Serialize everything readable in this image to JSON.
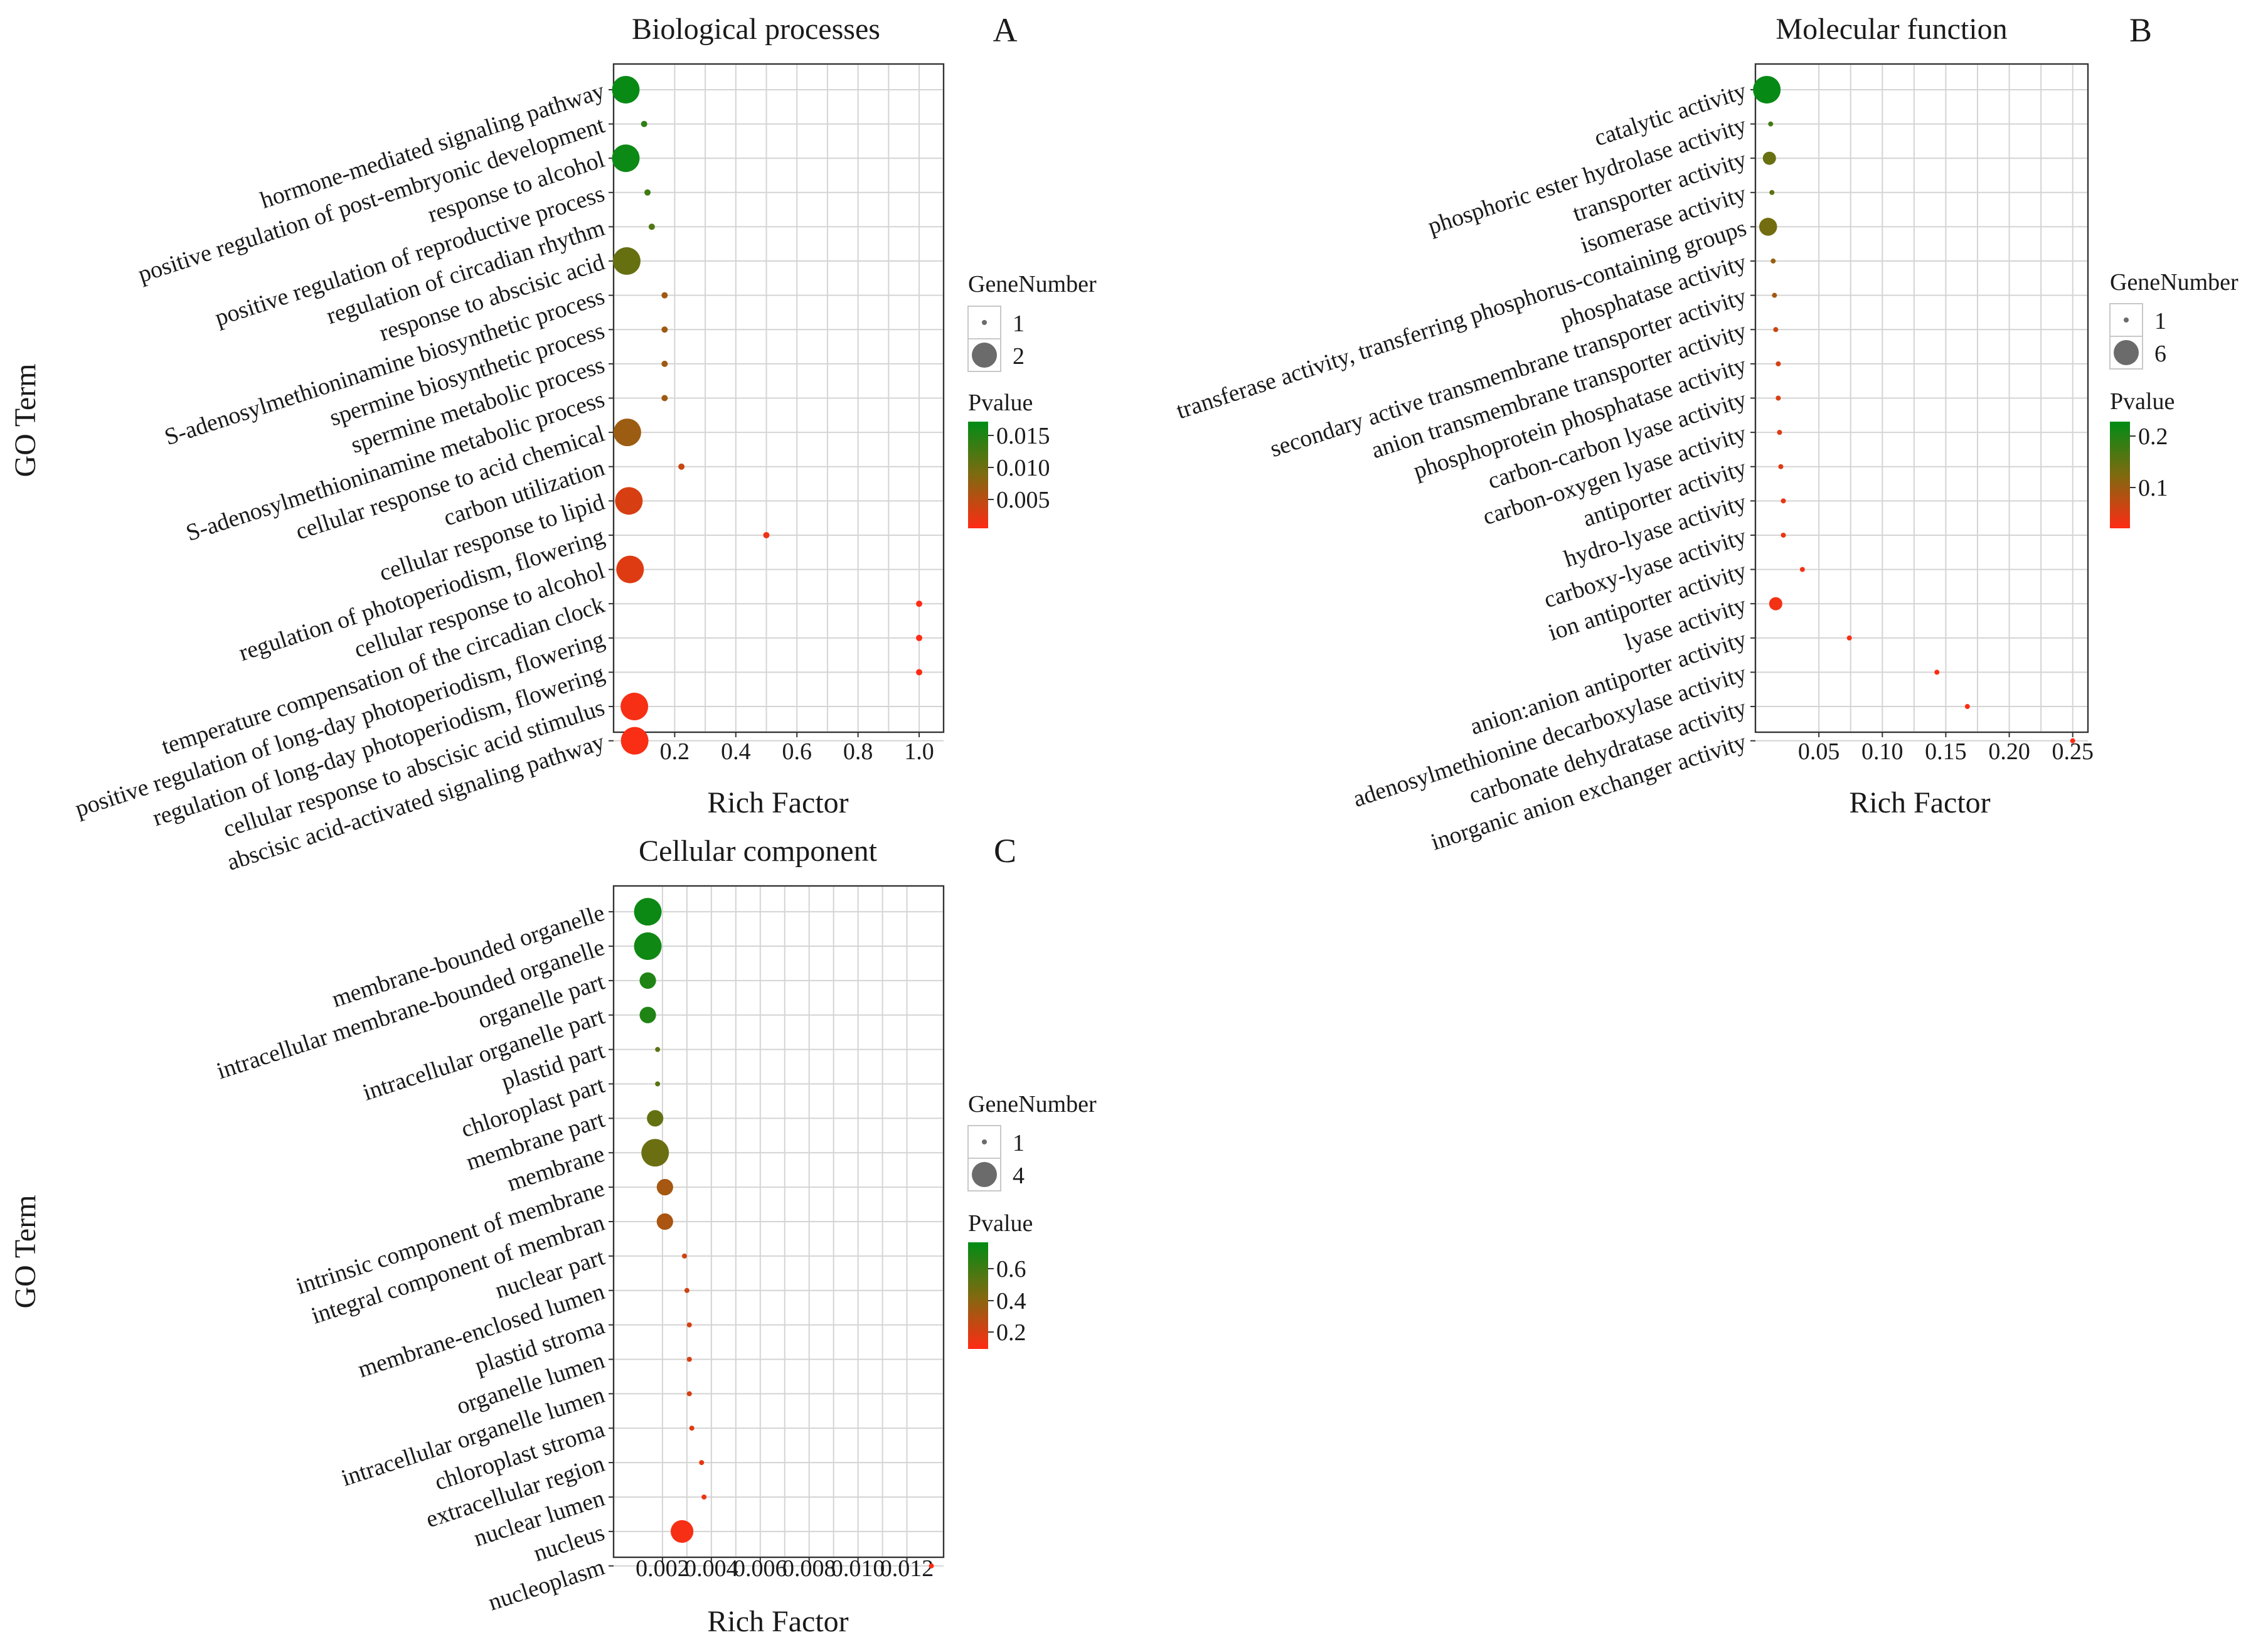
{
  "colors": {
    "low_p": "#ff2b14",
    "high_p": "#008c15",
    "mid_p": "#7f6a10",
    "legend_dot": "#6b6b6b"
  },
  "panels": [
    {
      "id": "bp",
      "letter": "A",
      "title": "Biological processes",
      "xlabel": "Rich Factor",
      "ylabel": "GO Term",
      "legend": {
        "size_title": "GeneNumber",
        "size_values": [
          "1",
          "2"
        ],
        "color_title": "Pvalue",
        "color_ticks": [
          "0.015",
          "0.010",
          "0.005"
        ]
      }
    },
    {
      "id": "mf",
      "letter": "B",
      "title": "Molecular function",
      "xlabel": "Rich Factor",
      "ylabel": "",
      "legend": {
        "size_title": "GeneNumber",
        "size_values": [
          "1",
          "6"
        ],
        "color_title": "Pvalue",
        "color_ticks": [
          "0.2",
          "0.1"
        ]
      }
    },
    {
      "id": "cc",
      "letter": "C",
      "title": "Cellular component",
      "xlabel": "Rich Factor",
      "ylabel": "GO Term",
      "legend": {
        "size_title": "GeneNumber",
        "size_values": [
          "1",
          "4"
        ],
        "color_title": "Pvalue",
        "color_ticks": [
          "0.6",
          "0.4",
          "0.2"
        ]
      }
    }
  ],
  "chart_data": [
    {
      "type": "scatter",
      "panel": "bp",
      "title": "Biological processes",
      "xlabel": "Rich Factor",
      "ylabel": "GO Term",
      "xlim": [
        0.0,
        1.08
      ],
      "xticks": [
        "0.2",
        "0.4",
        "0.6",
        "0.8",
        "1.0"
      ],
      "xtick_values": [
        0.2,
        0.4,
        0.6,
        0.8,
        1.0
      ],
      "size_range": [
        1,
        2
      ],
      "pvalue_range": [
        0.001,
        0.017
      ],
      "points": [
        {
          "term": "hormone-mediated signaling pathway",
          "rich_factor": 0.04,
          "gene_number": 2,
          "pvalue": 0.0165
        },
        {
          "term": "positive regulation of post-embryonic development",
          "rich_factor": 0.1,
          "gene_number": 1,
          "pvalue": 0.014
        },
        {
          "term": "response to alcohol",
          "rich_factor": 0.04,
          "gene_number": 2,
          "pvalue": 0.0162
        },
        {
          "term": "positive regulation of reproductive process",
          "rich_factor": 0.111,
          "gene_number": 1,
          "pvalue": 0.013
        },
        {
          "term": "regulation of circadian rhythm",
          "rich_factor": 0.125,
          "gene_number": 1,
          "pvalue": 0.012
        },
        {
          "term": "response to abscisic acid",
          "rich_factor": 0.043,
          "gene_number": 2,
          "pvalue": 0.0105
        },
        {
          "term": "S-adenosylmethioninamine biosynthetic process",
          "rich_factor": 0.167,
          "gene_number": 1,
          "pvalue": 0.007
        },
        {
          "term": "spermine biosynthetic process",
          "rich_factor": 0.167,
          "gene_number": 1,
          "pvalue": 0.007
        },
        {
          "term": "spermine metabolic process",
          "rich_factor": 0.167,
          "gene_number": 1,
          "pvalue": 0.007
        },
        {
          "term": "S-adenosylmethioninamine metabolic process",
          "rich_factor": 0.167,
          "gene_number": 1,
          "pvalue": 0.007
        },
        {
          "term": "cellular response to acid chemical",
          "rich_factor": 0.045,
          "gene_number": 2,
          "pvalue": 0.0072
        },
        {
          "term": "carbon utilization",
          "rich_factor": 0.222,
          "gene_number": 1,
          "pvalue": 0.0045
        },
        {
          "term": "cellular response to lipid",
          "rich_factor": 0.05,
          "gene_number": 2,
          "pvalue": 0.0035
        },
        {
          "term": "regulation of photoperiodism, flowering",
          "rich_factor": 0.5,
          "gene_number": 1,
          "pvalue": 0.002
        },
        {
          "term": "cellular response to alcohol",
          "rich_factor": 0.054,
          "gene_number": 2,
          "pvalue": 0.003
        },
        {
          "term": "temperature compensation of the circadian clock",
          "rich_factor": 1.0,
          "gene_number": 1,
          "pvalue": 0.001
        },
        {
          "term": "positive regulation of long-day photoperiodism, flowering",
          "rich_factor": 1.0,
          "gene_number": 1,
          "pvalue": 0.001
        },
        {
          "term": "regulation of long-day photoperiodism, flowering",
          "rich_factor": 1.0,
          "gene_number": 1,
          "pvalue": 0.001
        },
        {
          "term": "cellular response to abscisic acid stimulus",
          "rich_factor": 0.068,
          "gene_number": 2,
          "pvalue": 0.0015
        },
        {
          "term": "abscisic acid-activated signaling pathway",
          "rich_factor": 0.069,
          "gene_number": 2,
          "pvalue": 0.0014
        }
      ]
    },
    {
      "type": "scatter",
      "panel": "mf",
      "title": "Molecular function",
      "xlabel": "Rich Factor",
      "ylabel": "",
      "xlim": [
        0.0,
        0.262
      ],
      "xticks": [
        "0.05",
        "0.10",
        "0.15",
        "0.20",
        "0.25"
      ],
      "xtick_values": [
        0.05,
        0.1,
        0.15,
        0.2,
        0.25
      ],
      "size_range": [
        1,
        6
      ],
      "pvalue_range": [
        0.01,
        0.23
      ],
      "points": [
        {
          "term": "catalytic activity",
          "rich_factor": 0.009,
          "gene_number": 6,
          "pvalue": 0.225
        },
        {
          "term": "phosphoric ester hydrolase activity",
          "rich_factor": 0.012,
          "gene_number": 1,
          "pvalue": 0.17
        },
        {
          "term": "transporter activity",
          "rich_factor": 0.011,
          "gene_number": 2,
          "pvalue": 0.14
        },
        {
          "term": "isomerase activity",
          "rich_factor": 0.013,
          "gene_number": 1,
          "pvalue": 0.15
        },
        {
          "term": "transferase activity, transferring phosphorus-containing groups",
          "rich_factor": 0.01,
          "gene_number": 3,
          "pvalue": 0.13
        },
        {
          "term": "phosphatase activity",
          "rich_factor": 0.014,
          "gene_number": 1,
          "pvalue": 0.1
        },
        {
          "term": "secondary active transmembrane transporter activity",
          "rich_factor": 0.015,
          "gene_number": 1,
          "pvalue": 0.09
        },
        {
          "term": "anion transmembrane transporter activity",
          "rich_factor": 0.016,
          "gene_number": 1,
          "pvalue": 0.06
        },
        {
          "term": "phosphoprotein phosphatase activity",
          "rich_factor": 0.018,
          "gene_number": 1,
          "pvalue": 0.045
        },
        {
          "term": "carbon-carbon lyase activity",
          "rich_factor": 0.018,
          "gene_number": 1,
          "pvalue": 0.045
        },
        {
          "term": "carbon-oxygen lyase activity",
          "rich_factor": 0.019,
          "gene_number": 1,
          "pvalue": 0.04
        },
        {
          "term": "antiporter activity",
          "rich_factor": 0.02,
          "gene_number": 1,
          "pvalue": 0.035
        },
        {
          "term": "hydro-lyase activity",
          "rich_factor": 0.022,
          "gene_number": 1,
          "pvalue": 0.03
        },
        {
          "term": "carboxy-lyase activity",
          "rich_factor": 0.022,
          "gene_number": 1,
          "pvalue": 0.03
        },
        {
          "term": "ion antiporter activity",
          "rich_factor": 0.037,
          "gene_number": 1,
          "pvalue": 0.02
        },
        {
          "term": "lyase activity",
          "rich_factor": 0.016,
          "gene_number": 2,
          "pvalue": 0.02
        },
        {
          "term": "anion:anion antiporter activity",
          "rich_factor": 0.074,
          "gene_number": 1,
          "pvalue": 0.015
        },
        {
          "term": "adenosylmethionine decarboxylase activity",
          "rich_factor": 0.143,
          "gene_number": 1,
          "pvalue": 0.012
        },
        {
          "term": "carbonate dehydratase activity",
          "rich_factor": 0.167,
          "gene_number": 1,
          "pvalue": 0.011
        },
        {
          "term": "inorganic anion exchanger activity",
          "rich_factor": 0.25,
          "gene_number": 1,
          "pvalue": 0.01
        }
      ]
    },
    {
      "type": "scatter",
      "panel": "cc",
      "title": "Cellular component",
      "xlabel": "Rich Factor",
      "ylabel": "GO Term",
      "xlim": [
        0.0,
        0.0135
      ],
      "xticks": [
        "0.002",
        "0.004",
        "0.006",
        "0.008",
        "0.010",
        "0.012"
      ],
      "xtick_values": [
        0.002,
        0.004,
        0.006,
        0.008,
        0.01,
        0.012
      ],
      "size_range": [
        1,
        4
      ],
      "pvalue_range": [
        0.12,
        0.78
      ],
      "points": [
        {
          "term": "membrane-bounded organelle",
          "rich_factor": 0.0014,
          "gene_number": 4,
          "pvalue": 0.75
        },
        {
          "term": "intracellular membrane-bounded organelle",
          "rich_factor": 0.0014,
          "gene_number": 4,
          "pvalue": 0.74
        },
        {
          "term": "organelle part",
          "rich_factor": 0.0014,
          "gene_number": 2,
          "pvalue": 0.7
        },
        {
          "term": "intracellular organelle part",
          "rich_factor": 0.0014,
          "gene_number": 2,
          "pvalue": 0.7
        },
        {
          "term": "plastid part",
          "rich_factor": 0.0018,
          "gene_number": 1,
          "pvalue": 0.55
        },
        {
          "term": "chloroplast part",
          "rich_factor": 0.0018,
          "gene_number": 1,
          "pvalue": 0.55
        },
        {
          "term": "membrane part",
          "rich_factor": 0.0017,
          "gene_number": 2,
          "pvalue": 0.52
        },
        {
          "term": "membrane",
          "rich_factor": 0.0017,
          "gene_number": 4,
          "pvalue": 0.5
        },
        {
          "term": "intrinsic component of membrane",
          "rich_factor": 0.0021,
          "gene_number": 2,
          "pvalue": 0.35
        },
        {
          "term": "integral component of membran",
          "rich_factor": 0.0021,
          "gene_number": 2,
          "pvalue": 0.34
        },
        {
          "term": "nuclear part",
          "rich_factor": 0.0029,
          "gene_number": 1,
          "pvalue": 0.25
        },
        {
          "term": "membrane-enclosed lumen",
          "rich_factor": 0.003,
          "gene_number": 1,
          "pvalue": 0.24
        },
        {
          "term": "plastid stroma",
          "rich_factor": 0.0031,
          "gene_number": 1,
          "pvalue": 0.23
        },
        {
          "term": "organelle lumen",
          "rich_factor": 0.0031,
          "gene_number": 1,
          "pvalue": 0.23
        },
        {
          "term": "intracellular organelle lumen",
          "rich_factor": 0.0031,
          "gene_number": 1,
          "pvalue": 0.23
        },
        {
          "term": "chloroplast stroma",
          "rich_factor": 0.0032,
          "gene_number": 1,
          "pvalue": 0.21
        },
        {
          "term": "extracellular region",
          "rich_factor": 0.0036,
          "gene_number": 1,
          "pvalue": 0.18
        },
        {
          "term": "nuclear lumen",
          "rich_factor": 0.0037,
          "gene_number": 1,
          "pvalue": 0.17
        },
        {
          "term": "nucleus",
          "rich_factor": 0.0028,
          "gene_number": 3,
          "pvalue": 0.14
        },
        {
          "term": "nucleoplasm",
          "rich_factor": 0.013,
          "gene_number": 1,
          "pvalue": 0.12
        }
      ]
    }
  ]
}
